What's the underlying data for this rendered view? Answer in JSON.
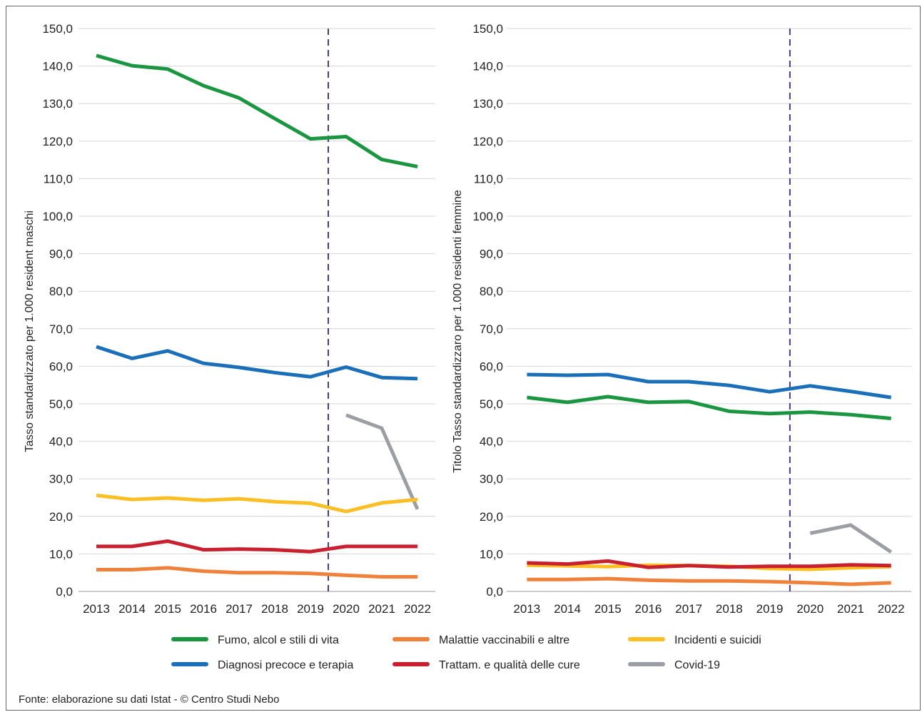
{
  "source": "Fonte: elaborazione su dati Istat - © Centro Studi Nebo",
  "legend": [
    {
      "name": "Fumo, alcol e stili di vita",
      "color": "#1a9641"
    },
    {
      "name": "Malattie vaccinabili e altre",
      "color": "#f0813a"
    },
    {
      "name": "Incidenti e suicidi",
      "color": "#fbbf24"
    },
    {
      "name": "Diagnosi precoce e terapia",
      "color": "#1b6fb8"
    },
    {
      "name": "Trattam. e qualità delle cure",
      "color": "#c8202e"
    },
    {
      "name": "Covid-19",
      "color": "#9b9ea3"
    }
  ],
  "chart_data": [
    {
      "type": "line",
      "ylabel": "Tasso standardizzato per 1.000 resident maschi",
      "categories": [
        "2013",
        "2014",
        "2015",
        "2016",
        "2017",
        "2018",
        "2019",
        "2020",
        "2021",
        "2022"
      ],
      "ylim": [
        0,
        150
      ],
      "yticks": [
        "0,0",
        "10,0",
        "20,0",
        "30,0",
        "40,0",
        "50,0",
        "60,0",
        "70,0",
        "80,0",
        "90,0",
        "100,0",
        "110,0",
        "120,0",
        "130,0",
        "140,0",
        "150,0"
      ],
      "grid": true,
      "marker_line_between": [
        "2019",
        "2020"
      ],
      "series": [
        {
          "name": "Fumo, alcol e stili di vita",
          "color": "#1a9641",
          "values": [
            142.8,
            140.1,
            139.2,
            134.8,
            131.5,
            126.0,
            120.6,
            121.2,
            115.1,
            113.2
          ]
        },
        {
          "name": "Diagnosi precoce e terapia",
          "color": "#1b6fb8",
          "values": [
            65.2,
            62.1,
            64.1,
            60.8,
            59.7,
            58.3,
            57.2,
            59.8,
            57.0,
            56.7
          ]
        },
        {
          "name": "Covid-19",
          "color": "#9b9ea3",
          "values": [
            null,
            null,
            null,
            null,
            null,
            null,
            null,
            47.0,
            43.5,
            21.9
          ]
        },
        {
          "name": "Incidenti e suicidi",
          "color": "#fbbf24",
          "values": [
            25.6,
            24.5,
            24.9,
            24.3,
            24.7,
            23.9,
            23.5,
            21.3,
            23.6,
            24.5
          ]
        },
        {
          "name": "Trattam. e qualità delle cure",
          "color": "#c8202e",
          "values": [
            12.0,
            12.0,
            13.4,
            11.1,
            11.3,
            11.1,
            10.6,
            12.0,
            12.0,
            12.0
          ]
        },
        {
          "name": "Malattie vaccinabili e altre",
          "color": "#f0813a",
          "values": [
            5.8,
            5.8,
            6.3,
            5.4,
            5.0,
            5.0,
            4.8,
            4.3,
            3.9,
            3.9
          ]
        }
      ]
    },
    {
      "type": "line",
      "ylabel": "Titolo Tasso standardizzaro per 1.000 residenti femmine",
      "categories": [
        "2013",
        "2014",
        "2015",
        "2016",
        "2017",
        "2018",
        "2019",
        "2020",
        "2021",
        "2022"
      ],
      "ylim": [
        0,
        150
      ],
      "yticks": [
        "0,0",
        "10,0",
        "20,0",
        "30,0",
        "40,0",
        "50,0",
        "60,0",
        "70,0",
        "80,0",
        "90,0",
        "100,0",
        "110,0",
        "120,0",
        "130,0",
        "140,0",
        "150,0"
      ],
      "grid": true,
      "marker_line_between": [
        "2019",
        "2020"
      ],
      "series": [
        {
          "name": "Diagnosi precoce e terapia",
          "color": "#1b6fb8",
          "values": [
            57.8,
            57.6,
            57.8,
            55.9,
            55.9,
            54.9,
            53.2,
            54.8,
            53.3,
            51.7
          ]
        },
        {
          "name": "Fumo, alcol e stili di vita",
          "color": "#1a9641",
          "values": [
            51.7,
            50.4,
            51.9,
            50.4,
            50.6,
            48.0,
            47.4,
            47.8,
            47.1,
            46.1
          ]
        },
        {
          "name": "Covid-19",
          "color": "#9b9ea3",
          "values": [
            null,
            null,
            null,
            null,
            null,
            null,
            null,
            15.5,
            17.7,
            10.5
          ]
        },
        {
          "name": "Incidenti e suicidi",
          "color": "#fbbf24",
          "values": [
            7.0,
            6.8,
            6.6,
            7.0,
            6.9,
            6.7,
            6.1,
            5.9,
            6.3,
            6.6
          ]
        },
        {
          "name": "Trattam. e qualità delle cure",
          "color": "#c8202e",
          "values": [
            7.6,
            7.3,
            8.1,
            6.4,
            6.9,
            6.5,
            6.7,
            6.7,
            7.1,
            6.9
          ]
        },
        {
          "name": "Malattie vaccinabili e altre",
          "color": "#f0813a",
          "values": [
            3.2,
            3.2,
            3.4,
            3.0,
            2.8,
            2.8,
            2.6,
            2.3,
            1.9,
            2.3
          ]
        }
      ]
    }
  ]
}
